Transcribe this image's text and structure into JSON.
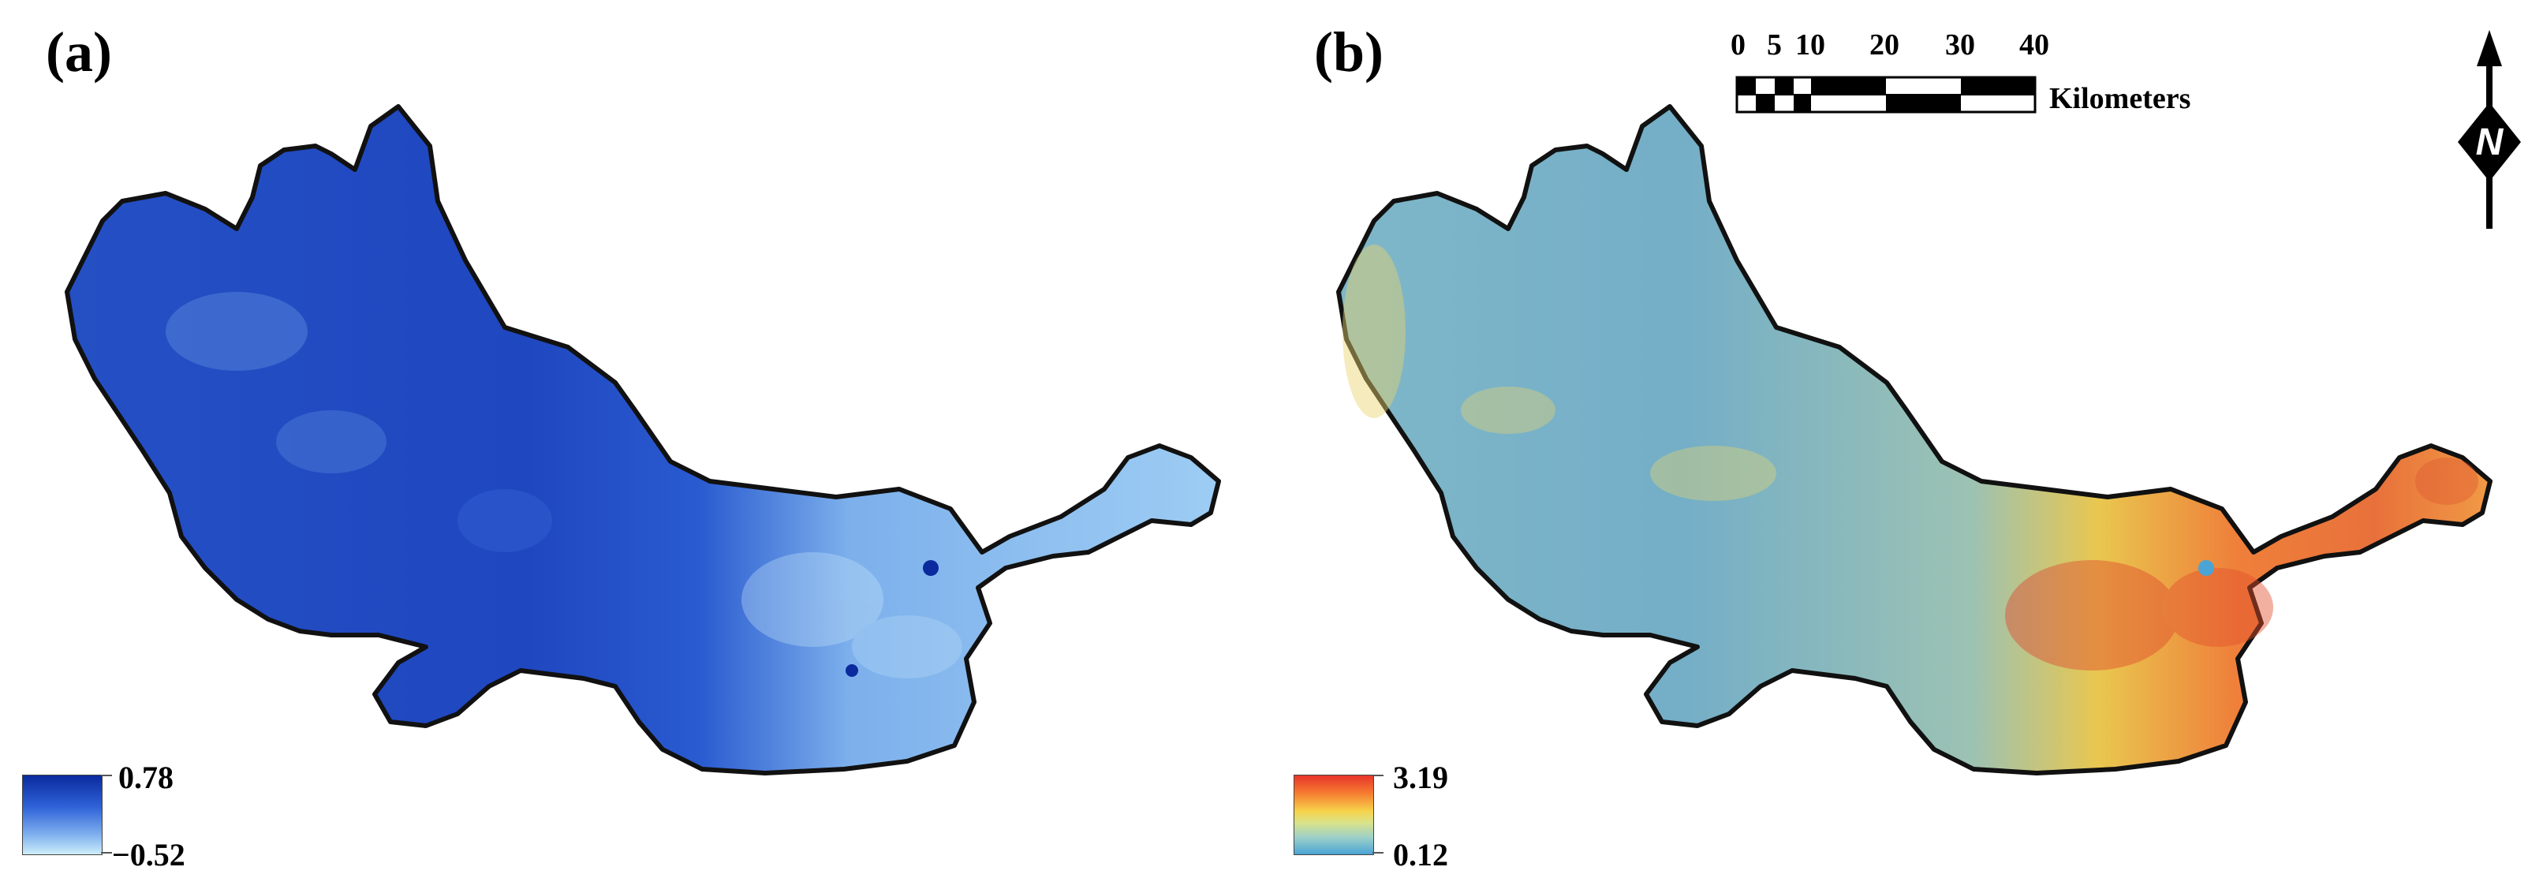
{
  "panels": [
    {
      "label": "(a)",
      "legend": {
        "max": "0.78",
        "min": "−0.52",
        "colors": [
          "#0a2a9e",
          "#2f62d8",
          "#7fb0ee",
          "#cdeefa"
        ]
      }
    },
    {
      "label": "(b)",
      "legend": {
        "max": "3.19",
        "min": "0.12",
        "colors": [
          "#e8342a",
          "#f57a30",
          "#f7d24a",
          "#9fd1c7",
          "#4aa4d6"
        ]
      }
    }
  ],
  "scale_bar": {
    "labels": [
      "0",
      "5",
      "10",
      "20",
      "30",
      "40"
    ],
    "unit": "Kilometers"
  },
  "north_arrow": {
    "letter": "N",
    "icon": "north-arrow-icon"
  },
  "boundary_color": "#111111"
}
